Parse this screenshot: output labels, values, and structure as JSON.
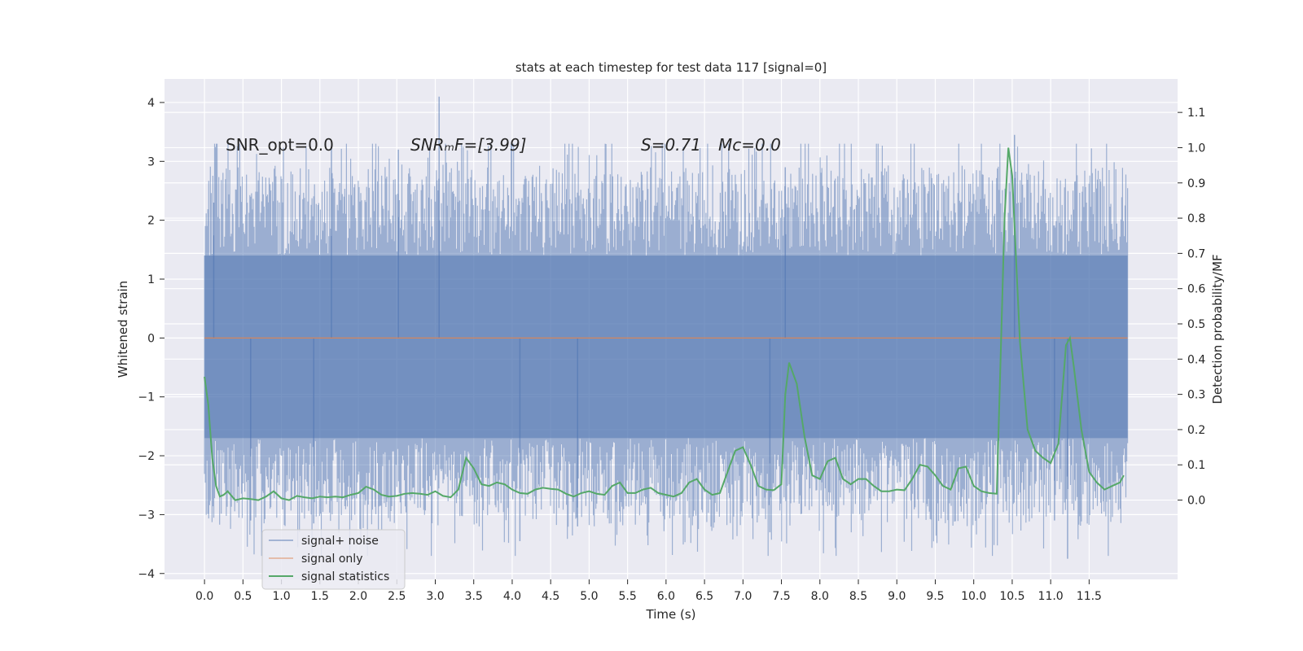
{
  "chart_data": {
    "type": "line",
    "title": "stats at each timestep for test data 117 [signal=0]",
    "xlabel": "Time (s)",
    "ylabel": "Whitened strain",
    "y2label": "Detection probability/MF",
    "xlim": [
      -0.52,
      12.65
    ],
    "ylim": [
      -4.1,
      4.4
    ],
    "y2lim": [
      -0.225,
      1.195
    ],
    "grid": true,
    "legend_position": "lower-left",
    "xticks": [
      0.0,
      0.5,
      1.0,
      1.5,
      2.0,
      2.5,
      3.0,
      3.5,
      4.0,
      4.5,
      5.0,
      5.5,
      6.0,
      6.5,
      7.0,
      7.5,
      8.0,
      8.5,
      9.0,
      9.5,
      10.0,
      10.5,
      11.0,
      11.5
    ],
    "xtick_labels": [
      "0.0",
      "0.5",
      "1.0",
      "1.5",
      "2.0",
      "2.5",
      "3.0",
      "3.5",
      "4.0",
      "4.5",
      "5.0",
      "5.5",
      "6.0",
      "6.5",
      "7.0",
      "7.5",
      "8.0",
      "8.5",
      "9.0",
      "9.5",
      "10.0",
      "10.5",
      "11.0",
      "11.5"
    ],
    "yticks": [
      -4,
      -3,
      -2,
      -1,
      0,
      1,
      2,
      3,
      4
    ],
    "ytick_labels": [
      "−4",
      "−3",
      "−2",
      "−1",
      "0",
      "1",
      "2",
      "3",
      "4"
    ],
    "y2ticks": [
      0.0,
      0.1,
      0.2,
      0.3,
      0.4,
      0.5,
      0.6,
      0.7,
      0.8,
      0.9,
      1.0,
      1.1
    ],
    "y2tick_labels": [
      "0.0",
      "0.1",
      "0.2",
      "0.3",
      "0.4",
      "0.5",
      "0.6",
      "0.7",
      "0.8",
      "0.9",
      "1.0",
      "1.1"
    ],
    "annotations": {
      "snr_opt": "SNR_opt=0.0",
      "snr_mf": "SNRₘF=[3.99]",
      "s": "S=0.71",
      "mc": "Mᴄ=0.0"
    },
    "series": [
      {
        "name": "signal+ noise",
        "axis": "left",
        "color": "#4c72b0",
        "style": "dense-noise",
        "t_range": [
          0.0,
          12.0
        ],
        "core_band": [
          -1.7,
          1.4
        ],
        "upper_envelope": [
          2.5,
          3.3
        ],
        "lower_envelope": [
          -2.9,
          -3.7
        ],
        "spikes": [
          [
            0.12,
            2.3
          ],
          [
            1.65,
            3.25
          ],
          [
            2.52,
            3.2
          ],
          [
            3.05,
            4.1
          ],
          [
            4.1,
            -3.45
          ],
          [
            4.85,
            -3.2
          ],
          [
            7.35,
            -3.3
          ],
          [
            7.55,
            2.9
          ],
          [
            10.53,
            3.45
          ],
          [
            11.22,
            -3.75
          ],
          [
            11.05,
            -3.1
          ],
          [
            0.6,
            -3.1
          ],
          [
            1.42,
            -3.15
          ]
        ]
      },
      {
        "name": "signal only",
        "axis": "left",
        "color": "#dd8452",
        "x": [
          0.0,
          12.0
        ],
        "y": [
          0.0,
          0.0
        ]
      },
      {
        "name": "signal statistics",
        "axis": "right",
        "color": "#55a868",
        "x": [
          0.0,
          0.05,
          0.1,
          0.15,
          0.2,
          0.25,
          0.3,
          0.4,
          0.5,
          0.6,
          0.7,
          0.8,
          0.9,
          1.0,
          1.1,
          1.2,
          1.3,
          1.4,
          1.5,
          1.6,
          1.7,
          1.8,
          1.9,
          2.0,
          2.1,
          2.2,
          2.3,
          2.4,
          2.5,
          2.6,
          2.7,
          2.8,
          2.9,
          3.0,
          3.1,
          3.2,
          3.3,
          3.4,
          3.5,
          3.6,
          3.7,
          3.8,
          3.9,
          4.0,
          4.1,
          4.2,
          4.3,
          4.4,
          4.5,
          4.6,
          4.7,
          4.8,
          4.9,
          5.0,
          5.1,
          5.2,
          5.3,
          5.4,
          5.5,
          5.6,
          5.7,
          5.8,
          5.9,
          6.0,
          6.1,
          6.2,
          6.3,
          6.4,
          6.5,
          6.6,
          6.7,
          6.8,
          6.9,
          7.0,
          7.1,
          7.2,
          7.3,
          7.4,
          7.5,
          7.55,
          7.6,
          7.7,
          7.8,
          7.9,
          8.0,
          8.1,
          8.2,
          8.3,
          8.4,
          8.5,
          8.6,
          8.7,
          8.8,
          8.9,
          9.0,
          9.1,
          9.2,
          9.3,
          9.4,
          9.5,
          9.6,
          9.7,
          9.8,
          9.9,
          10.0,
          10.1,
          10.2,
          10.3,
          10.4,
          10.45,
          10.5,
          10.6,
          10.7,
          10.8,
          10.9,
          11.0,
          11.1,
          11.2,
          11.25,
          11.3,
          11.4,
          11.5,
          11.6,
          11.7,
          11.8,
          11.9,
          11.95
        ],
        "y": [
          0.35,
          0.27,
          0.12,
          0.04,
          0.01,
          0.015,
          0.025,
          0.0,
          0.005,
          0.003,
          0.0,
          0.01,
          0.025,
          0.005,
          0.0,
          0.012,
          0.008,
          0.005,
          0.01,
          0.008,
          0.01,
          0.008,
          0.015,
          0.02,
          0.038,
          0.03,
          0.015,
          0.01,
          0.012,
          0.018,
          0.02,
          0.018,
          0.015,
          0.025,
          0.012,
          0.008,
          0.03,
          0.12,
          0.09,
          0.045,
          0.04,
          0.05,
          0.045,
          0.03,
          0.02,
          0.018,
          0.03,
          0.035,
          0.032,
          0.03,
          0.018,
          0.01,
          0.02,
          0.025,
          0.018,
          0.015,
          0.04,
          0.05,
          0.02,
          0.02,
          0.03,
          0.035,
          0.02,
          0.015,
          0.01,
          0.02,
          0.05,
          0.06,
          0.03,
          0.015,
          0.02,
          0.08,
          0.14,
          0.15,
          0.1,
          0.04,
          0.03,
          0.028,
          0.045,
          0.3,
          0.39,
          0.33,
          0.18,
          0.07,
          0.06,
          0.11,
          0.12,
          0.06,
          0.045,
          0.06,
          0.06,
          0.04,
          0.025,
          0.025,
          0.03,
          0.028,
          0.06,
          0.1,
          0.095,
          0.07,
          0.04,
          0.03,
          0.09,
          0.095,
          0.04,
          0.025,
          0.02,
          0.018,
          0.8,
          1.0,
          0.92,
          0.45,
          0.2,
          0.14,
          0.12,
          0.105,
          0.16,
          0.44,
          0.46,
          0.38,
          0.2,
          0.08,
          0.05,
          0.03,
          0.04,
          0.05,
          0.07
        ]
      }
    ]
  }
}
